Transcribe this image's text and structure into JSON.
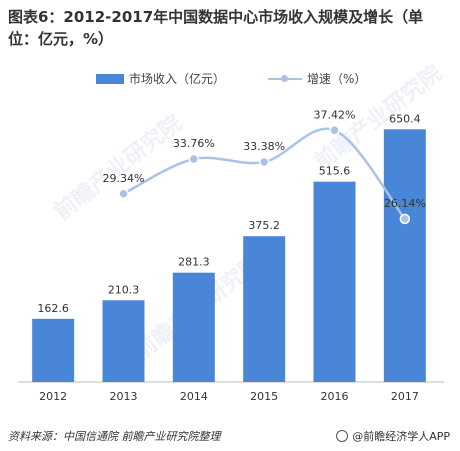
{
  "title": "图表6：2012-2017年中国数据中心市场收入规模及增长（单位：亿元，%）",
  "legend": {
    "bar_label": "市场收入（亿元）",
    "line_label": "增速（%）"
  },
  "source": "资料来源：中国信通院 前瞻产业研究院整理",
  "brand": "@前瞻经济学人APP",
  "watermark": "前瞻产业研究院",
  "colors": {
    "bar": "#4a86d8",
    "line": "#a9c3e6"
  },
  "chart_data": {
    "type": "bar",
    "title": "图表6：2012-2017年中国数据中心市场收入规模及增长（单位：亿元，%）",
    "categories": [
      "2012",
      "2013",
      "2014",
      "2015",
      "2016",
      "2017"
    ],
    "series": [
      {
        "name": "市场收入（亿元）",
        "type": "bar",
        "values": [
          162.6,
          210.3,
          281.3,
          375.2,
          515.6,
          650.4
        ],
        "labels": [
          "162.6",
          "210.3",
          "281.3",
          "375.2",
          "515.6",
          "650.4"
        ]
      },
      {
        "name": "增速（%）",
        "type": "line",
        "values": [
          null,
          29.34,
          33.76,
          33.38,
          37.42,
          26.14
        ],
        "labels": [
          "",
          "29.34%",
          "33.76%",
          "33.38%",
          "37.42%",
          "26.14%"
        ]
      }
    ],
    "ylim": [
      0,
      700
    ],
    "y2lim": [
      12,
      40
    ],
    "grid": false,
    "legend_position": "top"
  }
}
